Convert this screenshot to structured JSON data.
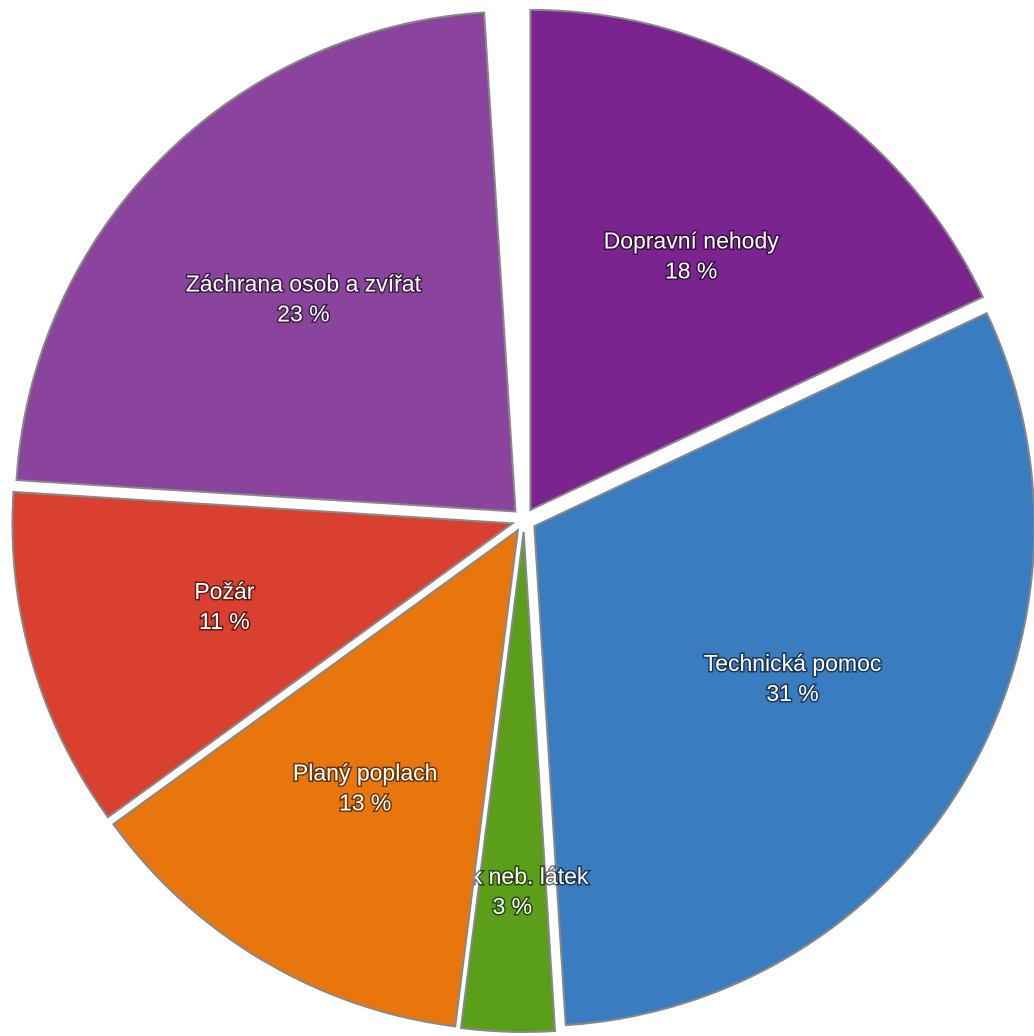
{
  "chart_data": {
    "type": "pie",
    "categories": [
      "Dopravní nehody",
      "Technická pomoc",
      "Únik neb. látek",
      "Planý poplach",
      "Požár",
      "Záchrana osob a zvířat"
    ],
    "values": [
      18,
      31,
      3,
      13,
      11,
      23
    ],
    "value_labels": [
      "18 %",
      "31 %",
      "3 %",
      "13 %",
      "11 %",
      "23 %"
    ],
    "colors": [
      "#7b2490",
      "#3a7cc0",
      "#5a9e1a",
      "#e8760c",
      "#d9402f",
      "#8a449e"
    ]
  }
}
